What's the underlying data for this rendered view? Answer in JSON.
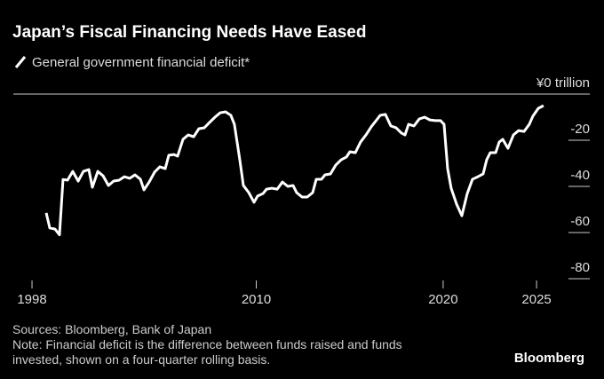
{
  "chart_data": {
    "type": "line",
    "title": "Japan’s Fiscal Financing Needs Have Eased",
    "series": [
      {
        "name": "General government financial deficit*",
        "color": "#ffffff",
        "values": [
          -51.5,
          -58,
          -58.5,
          -61,
          -37,
          -37.3,
          -33.5,
          -37.7,
          -33.5,
          -32.7,
          -40.4,
          -33.5,
          -35.4,
          -39.6,
          -37.7,
          -37.3,
          -35.8,
          -36.5,
          -35,
          -36.9,
          -41.5,
          -38.1,
          -33.8,
          -31.5,
          -32.3,
          -26.5,
          -26.2,
          -26.9,
          -19.6,
          -17.7,
          -18.5,
          -15,
          -14.6,
          -12.3,
          -10,
          -8.1,
          -7.7,
          -9.2,
          -13.1,
          -28.5,
          -39.6,
          -42.7,
          -46.9,
          -44.2,
          -43.1,
          -41.2,
          -40.8,
          -41.2,
          -38.1,
          -40,
          -39.6,
          -42.7,
          -44.6,
          -44.6,
          -42.7,
          -36.9,
          -36.9,
          -35,
          -34.6,
          -30.8,
          -28.5,
          -27.3,
          -25,
          -25.4,
          -20.8,
          -17.7,
          -14.2,
          -11.2,
          -9.2,
          -8.8,
          -13.8,
          -14.6,
          -16.9,
          -17.7,
          -13.1,
          -13.8,
          -10.8,
          -10,
          -11.2,
          -11.5,
          -11.5,
          -13.1,
          -32.3,
          -40.8,
          -47.7,
          -52.7,
          -43.1,
          -36.9,
          -35.8,
          -34.6,
          -28.5,
          -25.4,
          -25.4,
          -20.8,
          -19.6,
          -23.5,
          -17.7,
          -15.8,
          -16.2,
          -13.1,
          -9.6,
          -6.2,
          -5
        ]
      }
    ],
    "x": [
      1998.76,
      1998.95,
      1999.23,
      1999.47,
      1999.66,
      1999.9,
      2000.18,
      2000.47,
      2000.75,
      2001.04,
      2001.23,
      2001.52,
      2001.8,
      2002.09,
      2002.37,
      2002.66,
      2002.94,
      2003.23,
      2003.51,
      2003.8,
      2003.99,
      2004.27,
      2004.56,
      2004.84,
      2005.13,
      2005.32,
      2005.6,
      2005.79,
      2006.08,
      2006.36,
      2006.65,
      2006.93,
      2007.22,
      2007.5,
      2007.79,
      2008.07,
      2008.36,
      2008.64,
      2008.83,
      2009.12,
      2009.31,
      2009.6,
      2009.88,
      2010.07,
      2010.36,
      2010.55,
      2010.83,
      2011.12,
      2011.4,
      2011.69,
      2011.97,
      2012.16,
      2012.45,
      2012.73,
      2013.02,
      2013.21,
      2013.49,
      2013.68,
      2013.97,
      2014.25,
      2014.54,
      2014.82,
      2015.01,
      2015.3,
      2015.58,
      2015.87,
      2016.15,
      2016.44,
      2016.63,
      2016.91,
      2017.2,
      2017.48,
      2017.77,
      2017.96,
      2018.15,
      2018.44,
      2018.72,
      2019.01,
      2019.29,
      2019.58,
      2019.86,
      2020.05,
      2020.24,
      2020.43,
      2020.72,
      2021.0,
      2021.29,
      2021.57,
      2021.86,
      2022.14,
      2022.33,
      2022.52,
      2022.81,
      2023.0,
      2023.19,
      2023.47,
      2023.76,
      2024.04,
      2024.33,
      2024.61,
      2024.8,
      2025.09,
      2025.37
    ],
    "xlim": [
      1997,
      2027.8
    ],
    "xticks": [
      1998,
      2010,
      2020,
      2025
    ],
    "ylim": [
      -81,
      0
    ],
    "yticks": [
      {
        "value": 0,
        "label": "¥0 trillion"
      },
      -20,
      -40,
      -60,
      -80
    ],
    "source": "Sources: Bloomberg, Bank of Japan",
    "note": [
      "Note: Financial deficit is the difference between funds raised and funds",
      "invested, shown on a four-quarter rolling basis."
    ],
    "brand": "Bloomberg"
  }
}
